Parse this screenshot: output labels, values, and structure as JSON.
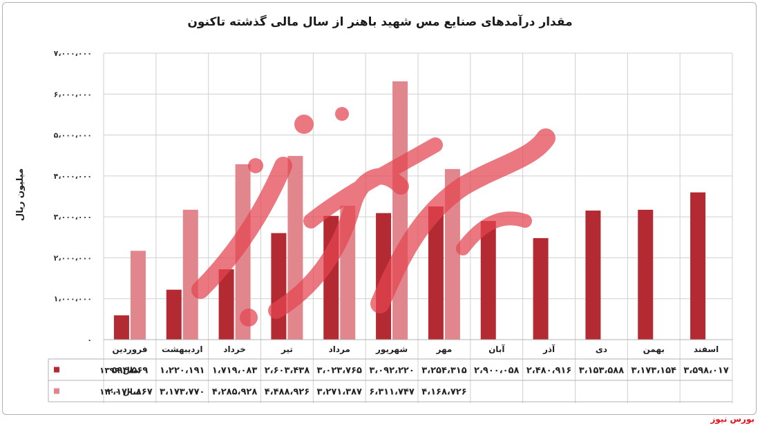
{
  "title": "مقدار درآمدهای صنایع مس شهید باهنر از سال مالی گذشته تاکنون",
  "source_label": "بورس نیوز",
  "watermark_text": "بورس نیوز",
  "colors": {
    "series_1399": "#b42a32",
    "series_1400": "#e0868c",
    "grid": "#cfcfcf",
    "watermark": "#e44550"
  },
  "chart_data": {
    "type": "bar",
    "title": "مقدار درآمدهای صنایع مس شهید باهنر از سال مالی گذشته تاکنون",
    "ylabel": "میلیون ریال",
    "xlabel": "",
    "ylim": [
      0,
      7000000
    ],
    "yticks": [
      0,
      1000000,
      2000000,
      3000000,
      4000000,
      5000000,
      6000000,
      7000000
    ],
    "ytick_labels": [
      "۰",
      "۱،۰۰۰،۰۰۰",
      "۲،۰۰۰،۰۰۰",
      "۳،۰۰۰،۰۰۰",
      "۴،۰۰۰،۰۰۰",
      "۵،۰۰۰،۰۰۰",
      "۶،۰۰۰،۰۰۰",
      "۷،۰۰۰،۰۰۰"
    ],
    "grid": true,
    "legend": "data-table",
    "categories": [
      "فروردین",
      "اردیبهشت",
      "خرداد",
      "تیر",
      "مرداد",
      "شهریور",
      "مهر",
      "آبان",
      "آذر",
      "دی",
      "بهمن",
      "اسفند"
    ],
    "series": [
      {
        "name": "سال ۱۳۹۹",
        "values": [
          594569,
          1220191,
          1719083,
          2603438,
          3023765,
          3092220,
          3254315,
          2900058,
          2480916,
          3153588,
          3173154,
          3598017
        ],
        "labels": [
          "۵۹۴،۵۶۹",
          "۱،۲۲۰،۱۹۱",
          "۱،۷۱۹،۰۸۳",
          "۲،۶۰۳،۴۳۸",
          "۳،۰۲۳،۷۶۵",
          "۳،۰۹۲،۲۲۰",
          "۳،۲۵۴،۳۱۵",
          "۲،۹۰۰،۰۵۸",
          "۲،۴۸۰،۹۱۶",
          "۳،۱۵۳،۵۸۸",
          "۳،۱۷۳،۱۵۴",
          "۳،۵۹۸،۰۱۷"
        ]
      },
      {
        "name": "سال ۱۴۰۰",
        "values": [
          2170867,
          3173770,
          4285928,
          4488926,
          3271387,
          6311747,
          4168726,
          null,
          null,
          null,
          null,
          null
        ],
        "labels": [
          "۲،۱۷۰،۸۶۷",
          "۳،۱۷۳،۷۷۰",
          "۴،۲۸۵،۹۲۸",
          "۴،۴۸۸،۹۲۶",
          "۳،۲۷۱،۳۸۷",
          "۶،۳۱۱،۷۴۷",
          "۴،۱۶۸،۷۲۶",
          "",
          "",
          "",
          "",
          ""
        ]
      }
    ]
  }
}
